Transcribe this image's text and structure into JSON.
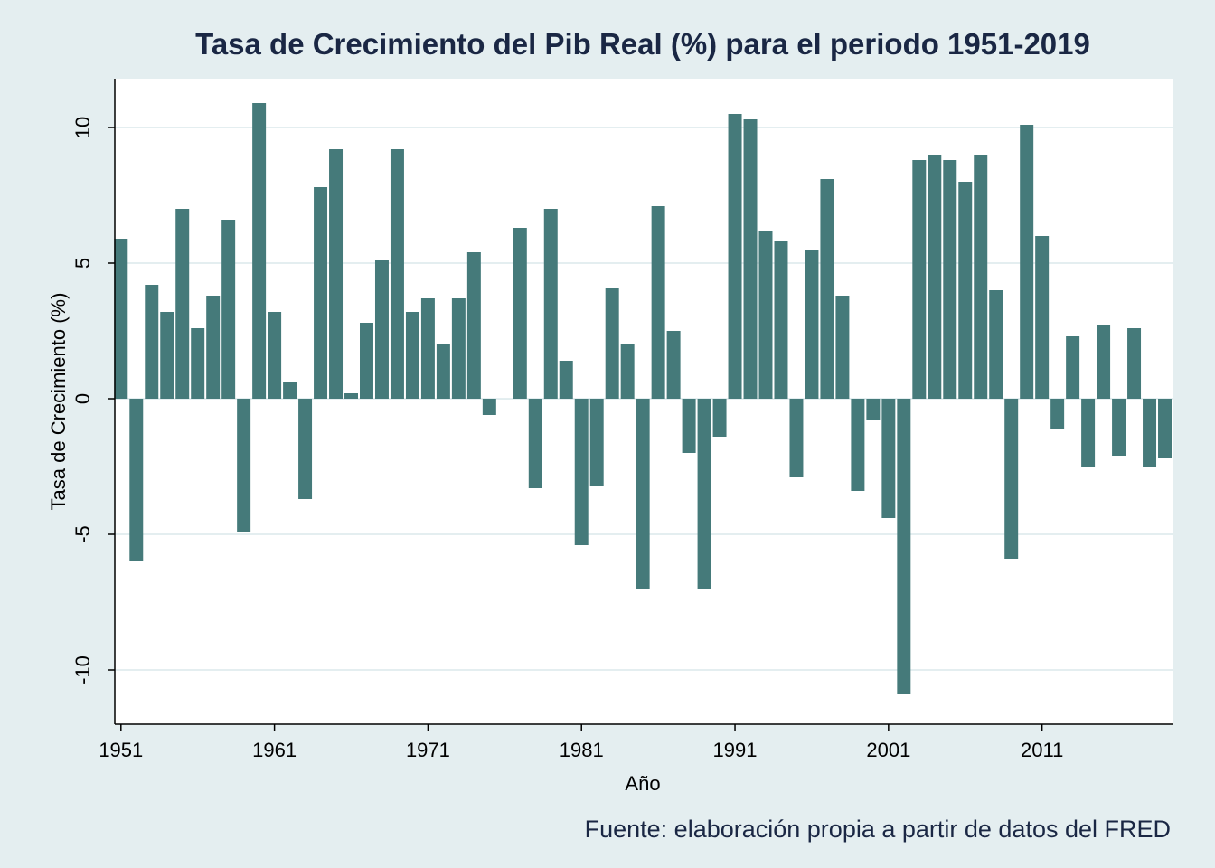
{
  "chart_data": {
    "type": "bar",
    "title": "Tasa de Crecimiento del Pib Real (%) para el periodo 1951-2019",
    "xlabel": "Año",
    "ylabel": "Tasa de Crecimiento (%)",
    "note": "Fuente: elaboración propia a partir de datos del FRED",
    "bar_color": "#457a7a",
    "grid": true,
    "ylim": [
      -12.0,
      11.8
    ],
    "xlim": [
      1950.6,
      2019.5
    ],
    "x_ticks": [
      1951,
      1961,
      1971,
      1981,
      1991,
      2001,
      2011
    ],
    "x_tick_labels": [
      "1951",
      "1961",
      "1971",
      "1981",
      "1991",
      "2001",
      "2011"
    ],
    "y_ticks": [
      -10,
      -5,
      0,
      5,
      10
    ],
    "y_tick_labels": [
      "-10",
      "-5",
      "0",
      "5",
      "10"
    ],
    "x": [
      1951,
      1952,
      1953,
      1954,
      1955,
      1956,
      1957,
      1958,
      1959,
      1960,
      1961,
      1962,
      1963,
      1964,
      1965,
      1966,
      1967,
      1968,
      1969,
      1970,
      1971,
      1972,
      1973,
      1974,
      1975,
      1976,
      1977,
      1978,
      1979,
      1980,
      1981,
      1982,
      1983,
      1984,
      1985,
      1986,
      1987,
      1988,
      1989,
      1990,
      1991,
      1992,
      1993,
      1994,
      1995,
      1996,
      1997,
      1998,
      1999,
      2000,
      2001,
      2002,
      2003,
      2004,
      2005,
      2006,
      2007,
      2008,
      2009,
      2010,
      2011,
      2012,
      2013,
      2014,
      2015,
      2016,
      2017,
      2018,
      2019
    ],
    "values": [
      5.9,
      -6.0,
      4.2,
      3.2,
      7.0,
      2.6,
      3.8,
      6.6,
      -4.9,
      10.9,
      3.2,
      0.6,
      -3.7,
      7.8,
      9.2,
      0.2,
      2.8,
      5.1,
      9.2,
      3.2,
      3.7,
      2.0,
      3.7,
      5.4,
      -0.6,
      0.0,
      6.3,
      -3.3,
      7.0,
      1.4,
      -5.4,
      -3.2,
      4.1,
      2.0,
      -7.0,
      7.1,
      2.5,
      -2.0,
      -7.0,
      -1.4,
      10.5,
      10.3,
      6.2,
      5.8,
      -2.9,
      5.5,
      8.1,
      3.8,
      -3.4,
      -0.8,
      -4.4,
      -10.9,
      8.8,
      9.0,
      8.8,
      8.0,
      9.0,
      4.0,
      -5.9,
      10.1,
      6.0,
      -1.1,
      2.3,
      -2.5,
      2.7,
      -2.1,
      2.6,
      -2.5,
      -2.2
    ]
  }
}
